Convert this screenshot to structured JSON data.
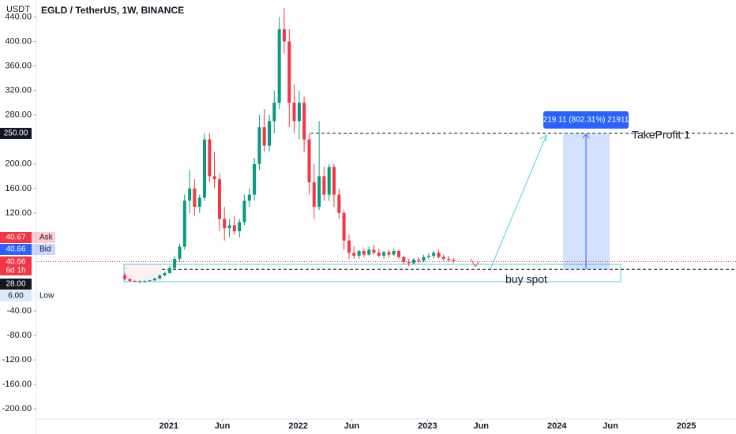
{
  "chart_data": {
    "type": "candlestick",
    "title": "EGLD / TetherUS, 1W, BINANCE",
    "y_label": "USDT",
    "x": [
      2020.66,
      2020.699,
      2020.737,
      2020.776,
      2020.814,
      2020.853,
      2020.891,
      2020.93,
      2020.968,
      2021.007,
      2021.045,
      2021.084,
      2021.122,
      2021.161,
      2021.199,
      2021.238,
      2021.276,
      2021.315,
      2021.353,
      2021.392,
      2021.43,
      2021.469,
      2021.507,
      2021.546,
      2021.584,
      2021.623,
      2021.661,
      2021.7,
      2021.738,
      2021.777,
      2021.815,
      2021.854,
      2021.892,
      2021.931,
      2021.969,
      2022.008,
      2022.046,
      2022.085,
      2022.123,
      2022.162,
      2022.2,
      2022.239,
      2022.277,
      2022.316,
      2022.354,
      2022.393,
      2022.431,
      2022.47,
      2022.508,
      2022.547,
      2022.585,
      2022.624,
      2022.662,
      2022.701,
      2022.739,
      2022.778,
      2022.816,
      2022.855,
      2022.893,
      2022.932,
      2022.97,
      2023.009,
      2023.047,
      2023.086,
      2023.124,
      2023.163,
      2023.201
    ],
    "open": [
      18,
      12,
      9,
      8,
      8,
      9,
      10,
      13,
      18,
      22,
      30,
      45,
      65,
      140,
      160,
      130,
      145,
      240,
      180,
      175,
      110,
      95,
      100,
      90,
      105,
      140,
      150,
      200,
      260,
      230,
      270,
      300,
      420,
      400,
      300,
      270,
      300,
      240,
      170,
      130,
      180,
      150,
      195,
      150,
      120,
      75,
      55,
      50,
      58,
      52,
      60,
      55,
      50,
      56,
      52,
      58,
      48,
      40,
      38,
      44,
      42,
      48,
      50,
      55,
      48,
      45,
      43
    ],
    "high": [
      22,
      14,
      11,
      10,
      10,
      11,
      14,
      20,
      24,
      34,
      50,
      70,
      150,
      190,
      175,
      150,
      250,
      250,
      220,
      185,
      130,
      110,
      115,
      110,
      150,
      160,
      210,
      280,
      290,
      280,
      320,
      440,
      455,
      420,
      330,
      320,
      310,
      250,
      200,
      270,
      195,
      200,
      200,
      160,
      125,
      85,
      65,
      60,
      62,
      65,
      68,
      62,
      58,
      60,
      62,
      60,
      50,
      45,
      46,
      48,
      52,
      54,
      58,
      60,
      52,
      50,
      46
    ],
    "low": [
      10,
      8,
      7,
      6,
      6,
      8,
      9,
      12,
      16,
      20,
      28,
      40,
      60,
      120,
      115,
      120,
      140,
      170,
      160,
      90,
      75,
      80,
      85,
      80,
      100,
      130,
      140,
      190,
      220,
      220,
      250,
      290,
      380,
      260,
      250,
      240,
      220,
      150,
      110,
      125,
      140,
      140,
      130,
      110,
      60,
      45,
      45,
      45,
      48,
      50,
      52,
      48,
      45,
      48,
      50,
      45,
      36,
      33,
      36,
      38,
      40,
      44,
      46,
      46,
      42,
      40,
      38
    ],
    "close": [
      12,
      9,
      8,
      8,
      9,
      10,
      13,
      18,
      22,
      30,
      45,
      65,
      140,
      160,
      130,
      145,
      240,
      180,
      175,
      110,
      95,
      100,
      90,
      105,
      140,
      150,
      200,
      260,
      230,
      270,
      300,
      420,
      400,
      300,
      270,
      300,
      240,
      170,
      130,
      180,
      150,
      195,
      150,
      120,
      75,
      55,
      50,
      58,
      52,
      60,
      55,
      50,
      56,
      52,
      58,
      48,
      40,
      38,
      44,
      42,
      48,
      50,
      55,
      48,
      45,
      43,
      41
    ],
    "up_color": "#089981",
    "down_color": "#f23645",
    "ylim": [
      -216.5,
      467.8
    ],
    "yticks": [
      {
        "value": 440,
        "label": "440.00"
      },
      {
        "value": 400,
        "label": "400.00"
      },
      {
        "value": 360,
        "label": "360.00"
      },
      {
        "value": 320,
        "label": "320.00"
      },
      {
        "value": 280,
        "label": "280.00"
      },
      {
        "value": 200,
        "label": "200.00"
      },
      {
        "value": 160,
        "label": "160.00"
      },
      {
        "value": 120,
        "label": "120.00"
      },
      {
        "value": -40,
        "label": "-40.00"
      },
      {
        "value": -80,
        "label": "-80.00"
      },
      {
        "value": -120,
        "label": "-120.00"
      },
      {
        "value": -160,
        "label": "-160.00"
      },
      {
        "value": -200,
        "label": "-200.00"
      }
    ],
    "xlim": [
      2019.976,
      2025.384
    ],
    "xticks": [
      2021,
      {
        "value": 2021.414,
        "label": "Jun"
      },
      2022,
      {
        "value": 2022.414,
        "label": "Jun"
      },
      2023,
      {
        "value": 2023.414,
        "label": "Jun"
      },
      2024,
      {
        "value": 2024.414,
        "label": "Jun"
      },
      2025
    ],
    "price_tags": [
      {
        "value": 40.67,
        "label": "40.67",
        "note": "Ask",
        "color": "#f23645",
        "text_color": "#ffffff"
      },
      {
        "value": 40.66,
        "label": "40.66",
        "note": "Bid",
        "color": "#2962ff",
        "text_color": "#ffffff"
      },
      {
        "value": 40.66,
        "label": "40.66",
        "note": "6d 1h",
        "color": "#f23645",
        "text_color": "#ffffff"
      },
      {
        "value": 28,
        "label": "28.00",
        "color": "#131722",
        "text_color": "#ffffff"
      },
      {
        "value": 6,
        "label": "6.00",
        "note": "Low",
        "color": "#dbe8f7",
        "text_color": "#131722"
      },
      {
        "value": 250,
        "label": "250.00",
        "color": "#131722",
        "text_color": "#ffffff"
      }
    ],
    "annotations": {
      "buy": "buy spot",
      "target": "TakeProfit 1",
      "measure": "219.11 (802.31%) 21911"
    }
  }
}
